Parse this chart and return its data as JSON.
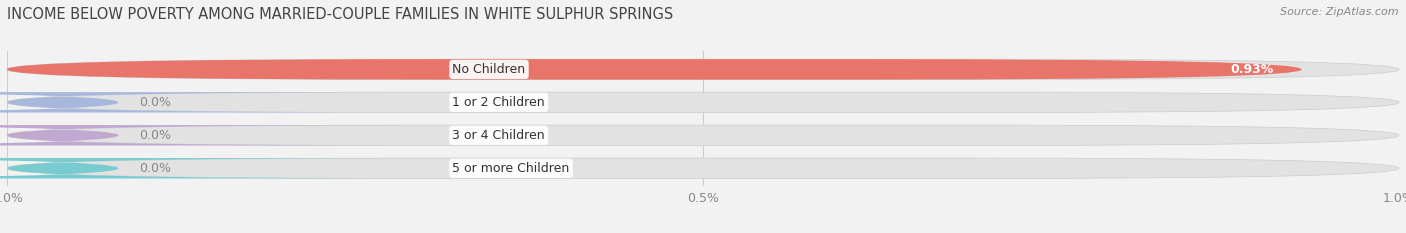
{
  "title": "INCOME BELOW POVERTY AMONG MARRIED-COUPLE FAMILIES IN WHITE SULPHUR SPRINGS",
  "source": "Source: ZipAtlas.com",
  "categories": [
    "No Children",
    "1 or 2 Children",
    "3 or 4 Children",
    "5 or more Children"
  ],
  "values": [
    0.93,
    0.0,
    0.0,
    0.0
  ],
  "bar_colors": [
    "#e8746a",
    "#a8b8dc",
    "#c0a8d0",
    "#78ccd0"
  ],
  "value_labels": [
    "0.93%",
    "0.0%",
    "0.0%",
    "0.0%"
  ],
  "xlim": [
    0,
    1.0
  ],
  "xtick_labels": [
    "0.0%",
    "0.5%",
    "1.0%"
  ],
  "background_color": "#f2f2f2",
  "bar_background": "#e2e2e2",
  "title_fontsize": 10.5,
  "tick_fontsize": 9,
  "label_fontsize": 9,
  "bar_height": 0.62,
  "bar_gap": 1.0,
  "zero_bar_width": 0.08
}
